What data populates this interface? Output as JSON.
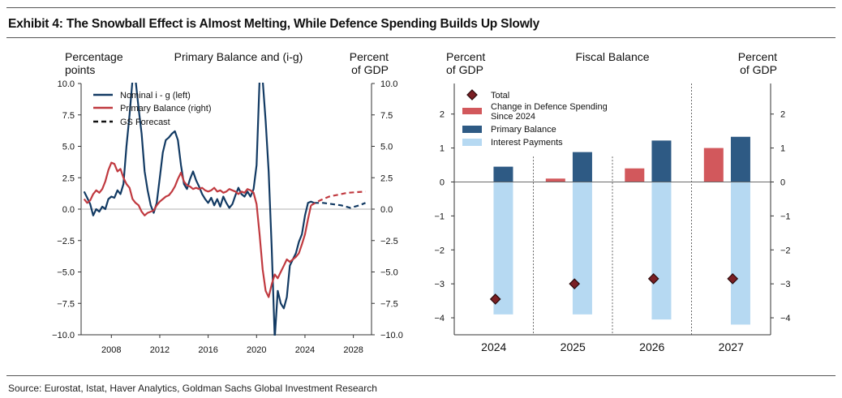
{
  "title": "Exhibit 4: The Snowball Effect is Almost Melting, While Defence Spending Builds Up Slowly",
  "source": "Source: Eurostat, Istat, Haver Analytics, Goldman Sachs Global Investment Research",
  "chart_data": [
    {
      "type": "line",
      "title": "Primary Balance and (i-g)",
      "ylabel_left": [
        "Percentage",
        "points"
      ],
      "ylabel_right": [
        "Percent",
        "of GDP"
      ],
      "ylim": [
        -10,
        10
      ],
      "yticks": [
        -10,
        -7.5,
        -5,
        -2.5,
        0,
        2.5,
        5,
        7.5,
        10
      ],
      "ytick_labels": [
        "−10.0",
        "−7.5",
        "−5.0",
        "−2.5",
        "0.0",
        "2.5",
        "5.0",
        "7.5",
        "10.0"
      ],
      "right_ytick_labels": [
        "−10.0",
        "−7.5",
        "−5.0",
        "−2.5",
        "0.0",
        "2.5",
        "5.0",
        "7.5",
        "10.0"
      ],
      "xlim": [
        2005.5,
        2029.5
      ],
      "xticks": [
        2008,
        2012,
        2016,
        2020,
        2024,
        2028
      ],
      "xtick_labels": [
        "2008",
        "2012",
        "2016",
        "2020",
        "2024",
        "2028"
      ],
      "legend": [
        "Nominal i - g (left)",
        "Primary Balance (right)",
        "GS Forecast"
      ],
      "legend_position": "top-left",
      "colors": {
        "nominal": "#123a63",
        "primary": "#c0393f"
      },
      "series": [
        {
          "name": "Nominal i - g (left)",
          "style": "solid",
          "points": [
            [
              2005.75,
              1.4
            ],
            [
              2006.0,
              0.9
            ],
            [
              2006.25,
              0.4
            ],
            [
              2006.5,
              -0.5
            ],
            [
              2006.75,
              0.0
            ],
            [
              2007.0,
              -0.2
            ],
            [
              2007.25,
              0.2
            ],
            [
              2007.5,
              0.0
            ],
            [
              2007.75,
              0.8
            ],
            [
              2008.0,
              1.0
            ],
            [
              2008.25,
              0.9
            ],
            [
              2008.5,
              1.5
            ],
            [
              2008.75,
              1.2
            ],
            [
              2009.0,
              2.0
            ],
            [
              2009.25,
              5.0
            ],
            [
              2009.5,
              7.5
            ],
            [
              2009.75,
              10.3
            ],
            [
              2010.0,
              10.3
            ],
            [
              2010.25,
              8.0
            ],
            [
              2010.5,
              6.0
            ],
            [
              2010.75,
              3.0
            ],
            [
              2011.0,
              1.5
            ],
            [
              2011.25,
              0.3
            ],
            [
              2011.5,
              -0.3
            ],
            [
              2011.75,
              0.5
            ],
            [
              2012.0,
              2.5
            ],
            [
              2012.25,
              4.5
            ],
            [
              2012.5,
              5.5
            ],
            [
              2012.75,
              5.7
            ],
            [
              2013.0,
              6.0
            ],
            [
              2013.25,
              6.2
            ],
            [
              2013.5,
              5.5
            ],
            [
              2013.75,
              3.5
            ],
            [
              2014.0,
              2.0
            ],
            [
              2014.25,
              1.6
            ],
            [
              2014.5,
              2.4
            ],
            [
              2014.75,
              3.0
            ],
            [
              2015.0,
              2.3
            ],
            [
              2015.25,
              1.8
            ],
            [
              2015.5,
              1.2
            ],
            [
              2015.75,
              0.8
            ],
            [
              2016.0,
              0.5
            ],
            [
              2016.25,
              0.9
            ],
            [
              2016.5,
              0.3
            ],
            [
              2016.75,
              0.8
            ],
            [
              2017.0,
              0.2
            ],
            [
              2017.25,
              1.0
            ],
            [
              2017.5,
              0.5
            ],
            [
              2017.75,
              0.1
            ],
            [
              2018.0,
              0.4
            ],
            [
              2018.25,
              1.1
            ],
            [
              2018.5,
              1.7
            ],
            [
              2018.75,
              1.2
            ],
            [
              2019.0,
              1.0
            ],
            [
              2019.25,
              1.4
            ],
            [
              2019.5,
              1.0
            ],
            [
              2019.75,
              1.6
            ],
            [
              2020.0,
              3.5
            ],
            [
              2020.25,
              10.3
            ],
            [
              2020.5,
              10.3
            ],
            [
              2020.75,
              7.0
            ],
            [
              2021.0,
              3.0
            ],
            [
              2021.25,
              -3.0
            ],
            [
              2021.5,
              -10.3
            ],
            [
              2021.75,
              -6.5
            ],
            [
              2022.0,
              -7.5
            ],
            [
              2022.25,
              -7.9
            ],
            [
              2022.5,
              -7.0
            ],
            [
              2022.75,
              -4.5
            ],
            [
              2023.0,
              -4.0
            ],
            [
              2023.25,
              -3.5
            ],
            [
              2023.5,
              -2.6
            ],
            [
              2023.75,
              -2.0
            ],
            [
              2024.0,
              -0.5
            ],
            [
              2024.25,
              0.5
            ],
            [
              2024.5,
              0.6
            ],
            [
              2024.75,
              0.5
            ]
          ]
        },
        {
          "name": "Primary Balance (right)",
          "style": "solid",
          "points": [
            [
              2005.75,
              0.8
            ],
            [
              2006.0,
              0.5
            ],
            [
              2006.25,
              0.7
            ],
            [
              2006.5,
              1.2
            ],
            [
              2006.75,
              1.5
            ],
            [
              2007.0,
              1.3
            ],
            [
              2007.25,
              1.6
            ],
            [
              2007.5,
              2.2
            ],
            [
              2007.75,
              3.1
            ],
            [
              2008.0,
              3.7
            ],
            [
              2008.25,
              3.6
            ],
            [
              2008.5,
              3.0
            ],
            [
              2008.75,
              3.2
            ],
            [
              2009.0,
              2.5
            ],
            [
              2009.25,
              2.0
            ],
            [
              2009.5,
              1.7
            ],
            [
              2009.75,
              0.8
            ],
            [
              2010.0,
              0.5
            ],
            [
              2010.25,
              0.3
            ],
            [
              2010.5,
              -0.2
            ],
            [
              2010.75,
              -0.5
            ],
            [
              2011.0,
              -0.3
            ],
            [
              2011.25,
              -0.2
            ],
            [
              2011.5,
              -0.1
            ],
            [
              2011.75,
              0.3
            ],
            [
              2012.0,
              0.6
            ],
            [
              2012.25,
              0.8
            ],
            [
              2012.5,
              1.0
            ],
            [
              2012.75,
              1.1
            ],
            [
              2013.0,
              1.4
            ],
            [
              2013.25,
              1.8
            ],
            [
              2013.5,
              2.4
            ],
            [
              2013.75,
              2.9
            ],
            [
              2014.0,
              2.2
            ],
            [
              2014.25,
              1.9
            ],
            [
              2014.5,
              1.8
            ],
            [
              2014.75,
              1.6
            ],
            [
              2015.0,
              1.7
            ],
            [
              2015.25,
              1.6
            ],
            [
              2015.5,
              1.7
            ],
            [
              2015.75,
              1.5
            ],
            [
              2016.0,
              1.4
            ],
            [
              2016.25,
              1.5
            ],
            [
              2016.5,
              1.7
            ],
            [
              2016.75,
              1.4
            ],
            [
              2017.0,
              1.5
            ],
            [
              2017.25,
              1.3
            ],
            [
              2017.5,
              1.4
            ],
            [
              2017.75,
              1.6
            ],
            [
              2018.0,
              1.5
            ],
            [
              2018.25,
              1.4
            ],
            [
              2018.5,
              1.2
            ],
            [
              2018.75,
              1.4
            ],
            [
              2019.0,
              1.3
            ],
            [
              2019.25,
              1.6
            ],
            [
              2019.5,
              1.5
            ],
            [
              2019.75,
              1.3
            ],
            [
              2020.0,
              0.4
            ],
            [
              2020.25,
              -2.0
            ],
            [
              2020.5,
              -4.8
            ],
            [
              2020.75,
              -6.5
            ],
            [
              2021.0,
              -7.0
            ],
            [
              2021.25,
              -6.0
            ],
            [
              2021.5,
              -5.2
            ],
            [
              2021.75,
              -5.5
            ],
            [
              2022.0,
              -5.0
            ],
            [
              2022.25,
              -4.5
            ],
            [
              2022.5,
              -4.0
            ],
            [
              2022.75,
              -4.2
            ],
            [
              2023.0,
              -4.0
            ],
            [
              2023.25,
              -3.8
            ],
            [
              2023.5,
              -3.5
            ],
            [
              2023.75,
              -2.8
            ],
            [
              2024.0,
              -2.0
            ],
            [
              2024.25,
              -0.8
            ],
            [
              2024.5,
              0.3
            ]
          ]
        },
        {
          "name": "GS Forecast (i-g)",
          "style": "dashed",
          "points": [
            [
              2024.75,
              0.5
            ],
            [
              2025.5,
              0.5
            ],
            [
              2026.25,
              0.4
            ],
            [
              2027.0,
              0.3
            ],
            [
              2027.75,
              0.1
            ],
            [
              2028.5,
              0.3
            ],
            [
              2029.0,
              0.5
            ]
          ]
        },
        {
          "name": "GS Forecast (primary balance)",
          "style": "dashed",
          "points": [
            [
              2024.5,
              0.3
            ],
            [
              2025.25,
              0.7
            ],
            [
              2026.0,
              1.0
            ],
            [
              2026.75,
              1.15
            ],
            [
              2027.5,
              1.3
            ],
            [
              2028.25,
              1.35
            ],
            [
              2029.0,
              1.4
            ]
          ]
        }
      ]
    },
    {
      "type": "bar",
      "title": "Fiscal Balance",
      "ylabel_left": [
        "Percent",
        "of GDP"
      ],
      "ylabel_right": [
        "Percent",
        "of GDP"
      ],
      "ylim": [
        -4.5,
        2.9
      ],
      "yticks": [
        -4,
        -3,
        -2,
        -1,
        0,
        1,
        2
      ],
      "ytick_labels": [
        "−4",
        "−3",
        "−2",
        "−1",
        "0",
        "1",
        "2"
      ],
      "right_ytick_labels": [
        "−4",
        "−3",
        "−2",
        "−1",
        "0",
        "1",
        "2"
      ],
      "categories": [
        "2024",
        "2025",
        "2026",
        "2027"
      ],
      "legend": [
        "Total",
        "Change in Defence Spending\nSince 2024",
        "Primary Balance",
        "Interest Payments"
      ],
      "legend_position": "top-left",
      "colors": {
        "defence": "#d2585c",
        "primary": "#2e5a84",
        "interest": "#b6d9f2",
        "total": "#7a1f24"
      },
      "series": [
        {
          "name": "Change in Defence Spending Since 2024",
          "values": [
            0,
            0.1,
            0.4,
            1.0
          ]
        },
        {
          "name": "Primary Balance",
          "values": [
            0.45,
            0.88,
            1.22,
            1.33
          ]
        },
        {
          "name": "Interest Payments",
          "values": [
            -3.9,
            -3.9,
            -4.05,
            -4.2
          ]
        },
        {
          "name": "Total",
          "values": [
            -3.45,
            -3.0,
            -2.85,
            -2.85
          ]
        }
      ]
    }
  ]
}
